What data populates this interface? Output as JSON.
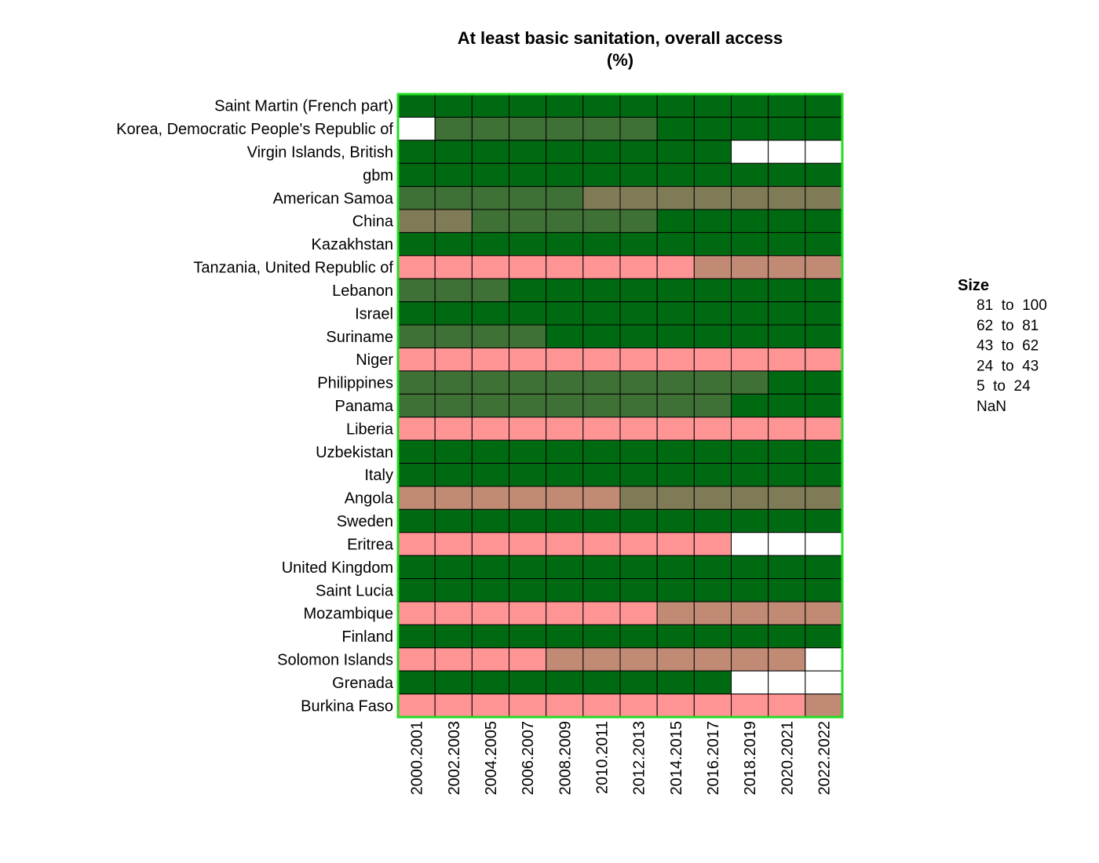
{
  "chart_data": {
    "type": "heatmap",
    "title": "At least basic sanitation, overall access",
    "subtitle": "(%)",
    "columns": [
      "2000.2001",
      "2002.2003",
      "2004.2005",
      "2006.2007",
      "2008.2009",
      "2010.2011",
      "2012.2013",
      "2014.2015",
      "2016.2017",
      "2018.2019",
      "2020.2021",
      "2022.2022"
    ],
    "rows": [
      "Saint Martin (French part)",
      "Korea, Democratic People's Republic of",
      "Virgin Islands, British",
      "gbm",
      "American Samoa",
      "China",
      "Kazakhstan",
      "Tanzania, United Republic of",
      "Lebanon",
      "Israel",
      "Suriname",
      "Niger",
      "Philippines",
      "Panama",
      "Liberia",
      "Uzbekistan",
      "Italy",
      "Angola",
      "Sweden",
      "Eritrea",
      "United Kingdom",
      "Saint Lucia",
      "Mozambique",
      "Finland",
      "Solomon Islands",
      "Grenada",
      "Burkina Faso"
    ],
    "bins": [
      "81  to  100",
      "62  to  81",
      "43  to  62",
      "24  to  43",
      "5  to  24",
      "NaN"
    ],
    "bin_colors": [
      "#006a13",
      "#3f7035",
      "#807b57",
      "#c08a74",
      "#ff9494",
      "#ffffff"
    ],
    "cells": [
      [
        0,
        0,
        0,
        0,
        0,
        0,
        0,
        0,
        0,
        0,
        0,
        0
      ],
      [
        null,
        1,
        1,
        1,
        1,
        1,
        1,
        0,
        0,
        0,
        0,
        0
      ],
      [
        0,
        0,
        0,
        0,
        0,
        0,
        0,
        0,
        0,
        null,
        null,
        null
      ],
      [
        0,
        0,
        0,
        0,
        0,
        0,
        0,
        0,
        0,
        0,
        0,
        0
      ],
      [
        1,
        1,
        1,
        1,
        1,
        2,
        2,
        2,
        2,
        2,
        2,
        2
      ],
      [
        2,
        2,
        1,
        1,
        1,
        1,
        1,
        0,
        0,
        0,
        0,
        0
      ],
      [
        0,
        0,
        0,
        0,
        0,
        0,
        0,
        0,
        0,
        0,
        0,
        0
      ],
      [
        4,
        4,
        4,
        4,
        4,
        4,
        4,
        4,
        3,
        3,
        3,
        3
      ],
      [
        1,
        1,
        1,
        0,
        0,
        0,
        0,
        0,
        0,
        0,
        0,
        0
      ],
      [
        0,
        0,
        0,
        0,
        0,
        0,
        0,
        0,
        0,
        0,
        0,
        0
      ],
      [
        1,
        1,
        1,
        1,
        0,
        0,
        0,
        0,
        0,
        0,
        0,
        0
      ],
      [
        4,
        4,
        4,
        4,
        4,
        4,
        4,
        4,
        4,
        4,
        4,
        4
      ],
      [
        1,
        1,
        1,
        1,
        1,
        1,
        1,
        1,
        1,
        1,
        0,
        0
      ],
      [
        1,
        1,
        1,
        1,
        1,
        1,
        1,
        1,
        1,
        0,
        0,
        0
      ],
      [
        4,
        4,
        4,
        4,
        4,
        4,
        4,
        4,
        4,
        4,
        4,
        4
      ],
      [
        0,
        0,
        0,
        0,
        0,
        0,
        0,
        0,
        0,
        0,
        0,
        0
      ],
      [
        0,
        0,
        0,
        0,
        0,
        0,
        0,
        0,
        0,
        0,
        0,
        0
      ],
      [
        3,
        3,
        3,
        3,
        3,
        3,
        2,
        2,
        2,
        2,
        2,
        2
      ],
      [
        0,
        0,
        0,
        0,
        0,
        0,
        0,
        0,
        0,
        0,
        0,
        0
      ],
      [
        4,
        4,
        4,
        4,
        4,
        4,
        4,
        4,
        4,
        null,
        null,
        null
      ],
      [
        0,
        0,
        0,
        0,
        0,
        0,
        0,
        0,
        0,
        0,
        0,
        0
      ],
      [
        0,
        0,
        0,
        0,
        0,
        0,
        0,
        0,
        0,
        0,
        0,
        0
      ],
      [
        4,
        4,
        4,
        4,
        4,
        4,
        4,
        3,
        3,
        3,
        3,
        3
      ],
      [
        0,
        0,
        0,
        0,
        0,
        0,
        0,
        0,
        0,
        0,
        0,
        0
      ],
      [
        4,
        4,
        4,
        4,
        3,
        3,
        3,
        3,
        3,
        3,
        3,
        null
      ],
      [
        0,
        0,
        0,
        0,
        0,
        0,
        0,
        0,
        0,
        null,
        null,
        null
      ],
      [
        4,
        4,
        4,
        4,
        4,
        4,
        4,
        4,
        4,
        4,
        4,
        3
      ]
    ],
    "legend": {
      "title": "Size",
      "placement": "right"
    },
    "frame_color": "#22dd22",
    "cell_border_color": "#000000"
  }
}
